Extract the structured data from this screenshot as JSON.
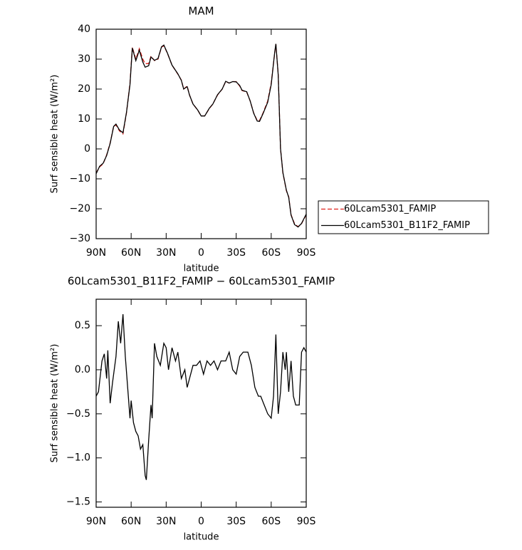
{
  "chart_data": [
    {
      "type": "line",
      "title": "MAM",
      "x_label": "latitude",
      "y_label": "Surf sensible heat (W/m²)",
      "x": [
        90,
        87,
        84,
        81,
        78,
        75,
        73,
        70,
        67,
        64,
        61,
        59,
        56,
        53,
        50,
        48,
        45,
        43,
        40,
        37,
        34,
        32,
        29,
        25,
        20,
        17,
        15,
        12,
        10,
        7,
        3,
        0,
        -3,
        -7,
        -10,
        -14,
        -18,
        -21,
        -24,
        -27,
        -30,
        -33,
        -35,
        -39,
        -42,
        -45,
        -48,
        -50,
        -53,
        -57,
        -60,
        -63,
        -64,
        -66,
        -68,
        -70,
        -73,
        -75,
        -77,
        -80,
        -83,
        -86,
        -90
      ],
      "xlim": [
        90,
        -90
      ],
      "xticks": [
        {
          "value": 90,
          "label": "90N"
        },
        {
          "value": 60,
          "label": "60N"
        },
        {
          "value": 30,
          "label": "30N"
        },
        0,
        {
          "value": -30,
          "label": "30S"
        },
        {
          "value": -60,
          "label": "60S"
        },
        {
          "value": -90,
          "label": "90S"
        }
      ],
      "ylim": [
        -30,
        40
      ],
      "yticks": [
        {
          "value": -30,
          "label": "−30"
        },
        {
          "value": -20,
          "label": "−20"
        },
        {
          "value": -10,
          "label": "−10"
        },
        0,
        10,
        20,
        30,
        40
      ],
      "legend": "right",
      "series": [
        {
          "name": "60Lcam5301_FAMIP",
          "color": "#e0201b",
          "linestyle": "dashed",
          "values": [
            -8,
            -6,
            -5,
            -2,
            2,
            7.5,
            8,
            6,
            5,
            12,
            22,
            34,
            30,
            33.5,
            30,
            28.5,
            28.5,
            31,
            29.5,
            30,
            34,
            34.5,
            32,
            28,
            25,
            23,
            20,
            21,
            18,
            15,
            13,
            11,
            11,
            13.5,
            15,
            18,
            20,
            22.5,
            22,
            22.5,
            22.5,
            21,
            19.5,
            19,
            16,
            12,
            9.5,
            9.5,
            12,
            16,
            22,
            32,
            35,
            25,
            0,
            -8,
            -14,
            -16,
            -22,
            -25,
            -26,
            -25,
            -22
          ]
        },
        {
          "name": "60Lcam5301_B11F2_FAMIP",
          "color": "#000000",
          "linestyle": "solid",
          "values": [
            -8.3,
            -5.8,
            -4.8,
            -2.2,
            1.8,
            7.5,
            8.3,
            6.3,
            5.4,
            12.2,
            21.5,
            33.7,
            29.5,
            33,
            29,
            27.3,
            27.8,
            30.7,
            29.6,
            30.2,
            34.1,
            34.7,
            32.1,
            28,
            25.1,
            22.9,
            20,
            20.8,
            18,
            15,
            13,
            11,
            11,
            13.6,
            15,
            18.1,
            20,
            22.6,
            22,
            22.5,
            22.4,
            21.2,
            19.6,
            19.1,
            16,
            11.9,
            9.3,
            9.2,
            11.8,
            15.6,
            21.5,
            32.3,
            35.1,
            24.7,
            0,
            -7.9,
            -13.8,
            -16.2,
            -22.1,
            -25.3,
            -26.1,
            -24.9,
            -21.8
          ]
        }
      ]
    },
    {
      "type": "line",
      "title": "60Lcam5301_B11F2_FAMIP − 60Lcam5301_FAMIP",
      "x_label": "latitude",
      "y_label": "Surf sensible heat (W/m²)",
      "x": [
        90,
        88,
        85,
        83,
        81,
        80,
        78,
        76,
        73,
        71,
        69,
        67,
        65,
        63,
        61,
        60,
        58,
        56,
        54,
        52,
        50,
        48,
        47,
        45,
        43,
        42,
        40,
        38,
        35,
        32,
        30,
        28,
        25,
        22,
        20,
        17,
        14,
        12,
        10,
        7,
        4,
        1,
        -2,
        -5,
        -8,
        -11,
        -14,
        -17,
        -21,
        -24,
        -27,
        -30,
        -33,
        -36,
        -40,
        -43,
        -46,
        -49,
        -51,
        -54,
        -57,
        -60,
        -62,
        -64,
        -66,
        -68,
        -70,
        -72,
        -73,
        -75,
        -77,
        -79,
        -81,
        -84,
        -86,
        -88,
        -90
      ],
      "xlim": [
        90,
        -90
      ],
      "xticks": [
        {
          "value": 90,
          "label": "90N"
        },
        {
          "value": 60,
          "label": "60N"
        },
        {
          "value": 30,
          "label": "30N"
        },
        0,
        {
          "value": -30,
          "label": "30S"
        },
        {
          "value": -60,
          "label": "60S"
        },
        {
          "value": -90,
          "label": "90S"
        }
      ],
      "ylim": [
        -1.56,
        0.8
      ],
      "yticks": [
        {
          "value": -1.5,
          "label": "−1.5"
        },
        {
          "value": -1,
          "label": "−1.0"
        },
        {
          "value": -0.5,
          "label": "−0.5"
        },
        {
          "value": 0,
          "label": "0.0"
        },
        0.5
      ],
      "series": [
        {
          "color": "#000000",
          "linestyle": "solid",
          "values": [
            -0.3,
            -0.25,
            0.1,
            0.18,
            -0.1,
            0.22,
            -0.38,
            -0.15,
            0.15,
            0.55,
            0.3,
            0.63,
            0.15,
            -0.2,
            -0.55,
            -0.35,
            -0.6,
            -0.7,
            -0.75,
            -0.9,
            -0.85,
            -1.2,
            -1.25,
            -0.8,
            -0.4,
            -0.55,
            0.3,
            0.15,
            0.05,
            0.3,
            0.25,
            0,
            0.25,
            0.1,
            0.2,
            -0.1,
            0,
            -0.2,
            -0.1,
            0.05,
            0.05,
            0.1,
            -0.05,
            0.1,
            0.05,
            0.1,
            0,
            0.1,
            0.1,
            0.2,
            0,
            -0.05,
            0.15,
            0.2,
            0.2,
            0.05,
            -0.2,
            -0.3,
            -0.3,
            -0.4,
            -0.5,
            -0.55,
            -0.3,
            0.4,
            -0.5,
            -0.25,
            0.2,
            0,
            0.2,
            -0.25,
            0.1,
            -0.3,
            -0.4,
            -0.4,
            0.2,
            0.25,
            0.2
          ]
        }
      ]
    }
  ]
}
